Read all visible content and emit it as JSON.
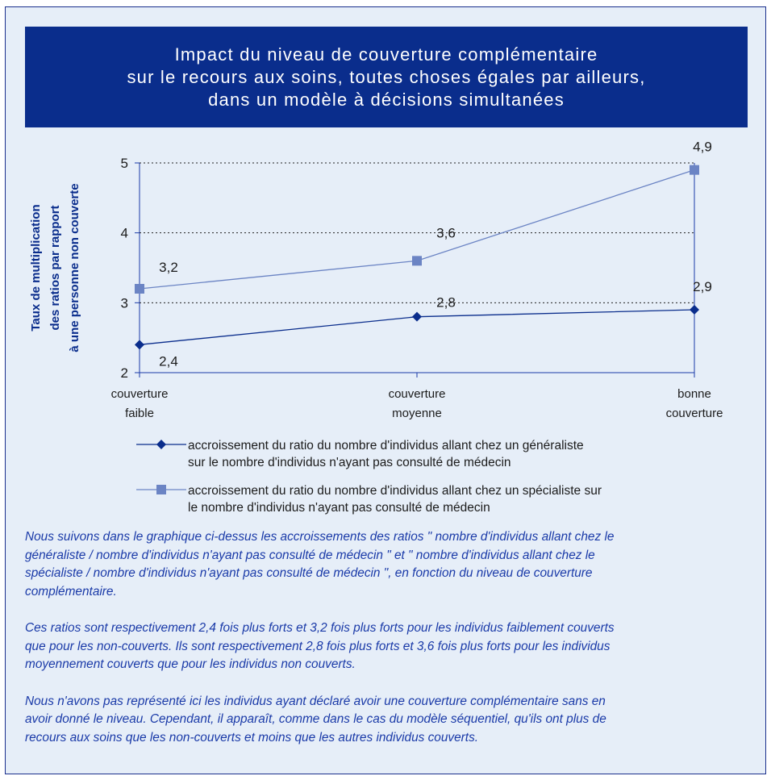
{
  "title": {
    "lines": [
      "Impact du niveau de couverture complémentaire",
      "sur le recours aux soins, toutes choses égales par ailleurs,",
      "dans un modèle à décisions simultanées"
    ]
  },
  "chart_data": {
    "type": "line",
    "title": "",
    "ylabel_lines": [
      "Taux de multiplication",
      "des ratios par rapport",
      "à une personne non couverte"
    ],
    "xlabel": "",
    "categories": [
      [
        "couverture",
        "faible"
      ],
      [
        "couverture",
        "moyenne"
      ],
      [
        "bonne",
        "couverture"
      ]
    ],
    "ylim": [
      2,
      5
    ],
    "yticks": [
      "2",
      "3",
      "4",
      "5"
    ],
    "grid": "dotted horizontal",
    "series": [
      {
        "name_lines": [
          "accroissement du ratio du nombre d'individus allant chez un généraliste",
          "sur le nombre d'individus n'ayant pas consulté de médecin"
        ],
        "values": [
          2.4,
          2.8,
          2.9
        ],
        "labels": [
          "2,4",
          "2,8",
          "2,9"
        ],
        "marker": "diamond",
        "color": "#0a2d8c"
      },
      {
        "name_lines": [
          "accroissement du ratio du nombre d'individus allant chez un spécialiste sur",
          "le nombre d'individus n'ayant pas consulté de médecin"
        ],
        "values": [
          3.2,
          3.6,
          4.9
        ],
        "labels": [
          "3,2",
          "3,6",
          "4,9"
        ],
        "marker": "square",
        "color": "#6b84c4"
      }
    ]
  },
  "text": {
    "paragraphs": [
      [
        "Nous suivons dans le graphique ci-dessus les accroissements des ratios \" nombre d'individus allant chez le",
        "généraliste / nombre d'individus n'ayant pas consulté de médecin \" et \" nombre d'individus allant chez le",
        "spécialiste / nombre d'individus n'ayant pas consulté de médecin \", en fonction du niveau de couverture",
        "complémentaire."
      ],
      [
        "Ces ratios sont respectivement 2,4 fois plus forts et 3,2 fois plus forts pour les individus faiblement couverts",
        "que pour les non-couverts. Ils sont respectivement 2,8 fois plus forts et 3,6 fois plus forts pour les individus",
        "moyennement couverts que pour les individus non couverts."
      ],
      [
        "Nous n'avons pas représenté ici les individus ayant déclaré avoir une couverture complémentaire sans en",
        "avoir donné le niveau. Cependant, il apparaît, comme dans le cas du modèle séquentiel, qu'ils ont plus de",
        "recours aux soins que les non-couverts et moins que les autres individus couverts."
      ]
    ]
  }
}
